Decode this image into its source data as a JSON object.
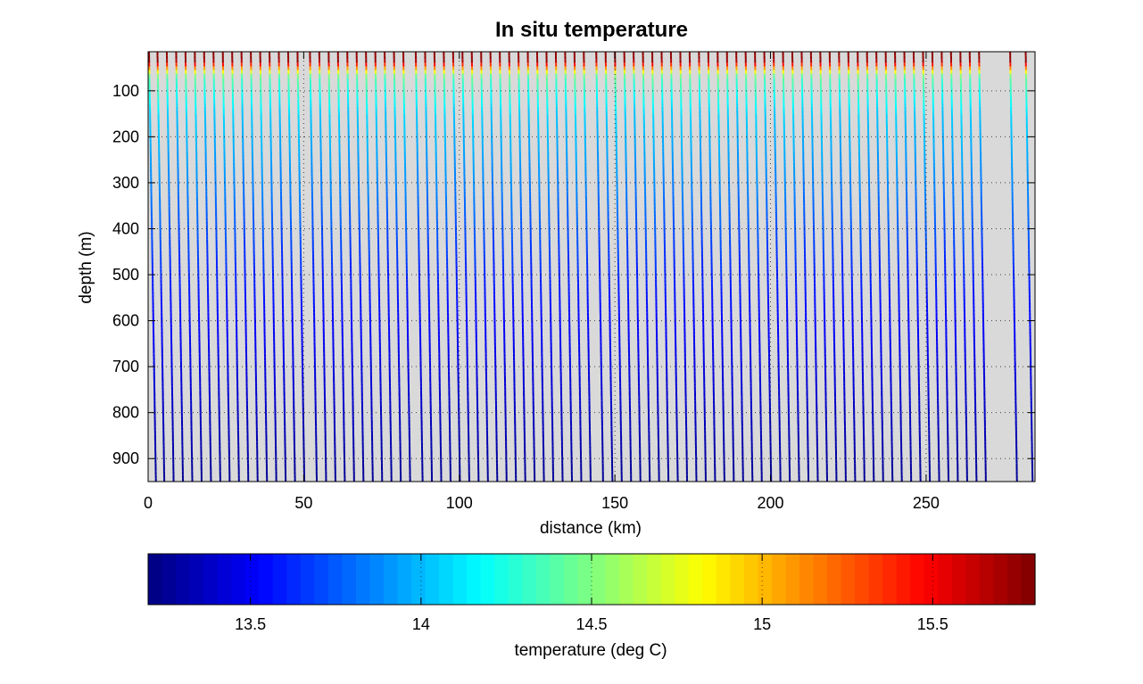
{
  "chart_data": {
    "type": "scatter",
    "title": "In situ temperature",
    "xlabel": "distance (km)",
    "ylabel": "depth (m)",
    "xlim": [
      0,
      285
    ],
    "ylim": [
      950,
      15
    ],
    "y_reversed": true,
    "grid": "dotted",
    "x_ticks": [
      0,
      50,
      100,
      150,
      200,
      250
    ],
    "y_ticks": [
      100,
      200,
      300,
      400,
      500,
      600,
      700,
      800,
      900
    ],
    "background_color": "#d9d9d9",
    "colormap": "jet",
    "series": [
      {
        "profile_x_km": [
          0.3,
          3,
          6,
          9,
          12,
          15,
          18,
          21,
          24,
          27,
          30,
          33,
          36,
          39,
          42,
          45,
          48,
          52,
          55,
          58,
          61,
          64,
          67,
          70,
          73,
          76,
          79,
          82,
          86,
          89,
          92,
          95,
          98,
          101,
          104,
          107,
          110,
          113,
          116,
          119,
          122,
          125,
          128,
          131,
          134,
          137,
          140,
          144,
          147,
          150,
          153,
          156,
          159,
          162,
          165,
          168,
          171,
          174,
          177,
          180,
          183,
          186,
          189,
          192,
          195,
          198,
          201,
          204,
          207,
          210,
          213,
          216,
          219,
          222,
          225,
          228,
          231,
          234,
          237,
          240,
          243,
          246,
          249,
          252,
          255,
          258,
          261,
          264,
          267,
          277,
          282
        ]
      }
    ],
    "colorbar": {
      "label": "temperature (deg C)",
      "range": [
        13.2,
        15.8
      ],
      "ticks": [
        13.5,
        14,
        14.5,
        15,
        15.5
      ],
      "orientation": "horizontal"
    }
  }
}
